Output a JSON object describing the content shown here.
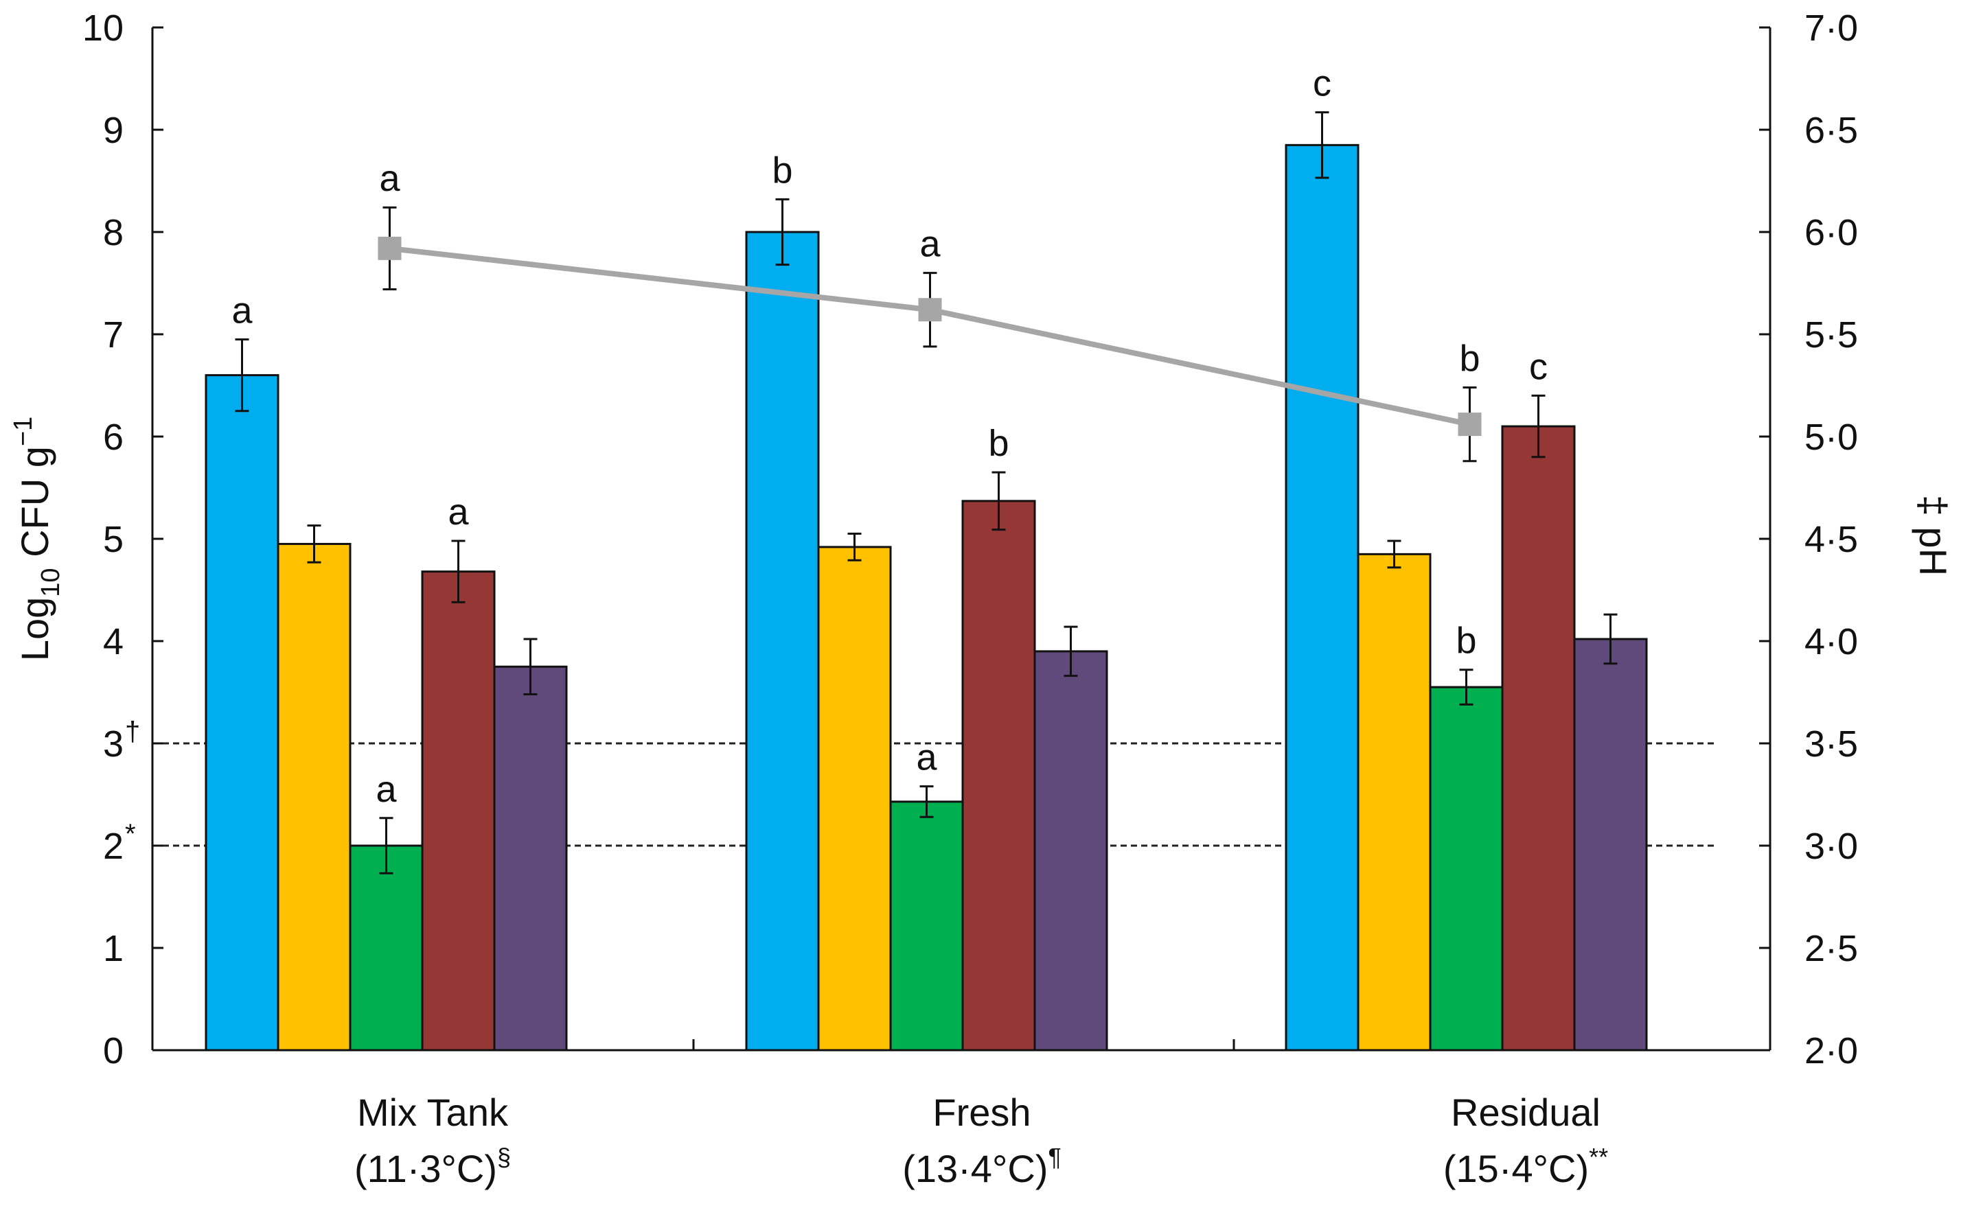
{
  "chart_data": {
    "type": "bar",
    "title": "",
    "ylabel_left": {
      "base": "Log",
      "sub": "10",
      "unit": " CFU g",
      "sup": "−1"
    },
    "ylabel_right": {
      "symbol": "‡",
      "text": " pH"
    },
    "ylim_left": [
      0,
      10
    ],
    "yticks_left": [
      "0",
      "1",
      "2",
      "3",
      "4",
      "5",
      "6",
      "7",
      "8",
      "9",
      "10"
    ],
    "ylim_right": [
      2.0,
      7.0
    ],
    "yticks_right": [
      "2·0",
      "2·5",
      "3·0",
      "3·5",
      "4·0",
      "4·5",
      "5·0",
      "5·5",
      "6·0",
      "6·5",
      "7·0"
    ],
    "ytick_marks_left": {
      "2": "*",
      "3": "†"
    },
    "categories": [
      {
        "name": "Mix Tank",
        "temp": "(11·3°C)",
        "mark": "§"
      },
      {
        "name": "Fresh",
        "temp": "(13·4°C)",
        "mark": "¶"
      },
      {
        "name": "Residual",
        "temp": "(15·4°C)",
        "mark": "**"
      }
    ],
    "series": [
      {
        "color": "#00adef",
        "values": [
          6.6,
          8.0,
          8.85
        ],
        "errors": [
          0.35,
          0.32,
          0.32
        ],
        "labels": [
          "a",
          "b",
          "c"
        ]
      },
      {
        "color": "#ffc000",
        "values": [
          4.95,
          4.92,
          4.85
        ],
        "errors": [
          0.18,
          0.13,
          0.13
        ],
        "labels": [
          "",
          "",
          ""
        ]
      },
      {
        "color": "#00b050",
        "values": [
          2.0,
          2.43,
          3.55
        ],
        "errors": [
          0.27,
          0.15,
          0.17
        ],
        "labels": [
          "a",
          "a",
          "b"
        ]
      },
      {
        "color": "#953735",
        "values": [
          4.68,
          5.37,
          6.1
        ],
        "errors": [
          0.3,
          0.28,
          0.3
        ],
        "labels": [
          "a",
          "b",
          "c"
        ]
      },
      {
        "color": "#604a7b",
        "values": [
          3.75,
          3.9,
          4.02
        ],
        "errors": [
          0.27,
          0.24,
          0.24
        ],
        "labels": [
          "",
          "",
          ""
        ]
      }
    ],
    "ph_line": {
      "color": "#a6a6a6",
      "values": [
        5.92,
        5.62,
        5.06
      ],
      "errors": [
        0.2,
        0.18,
        0.18
      ],
      "labels": [
        "a",
        "a",
        "b"
      ]
    },
    "reference_lines_left": [
      2,
      3
    ]
  }
}
